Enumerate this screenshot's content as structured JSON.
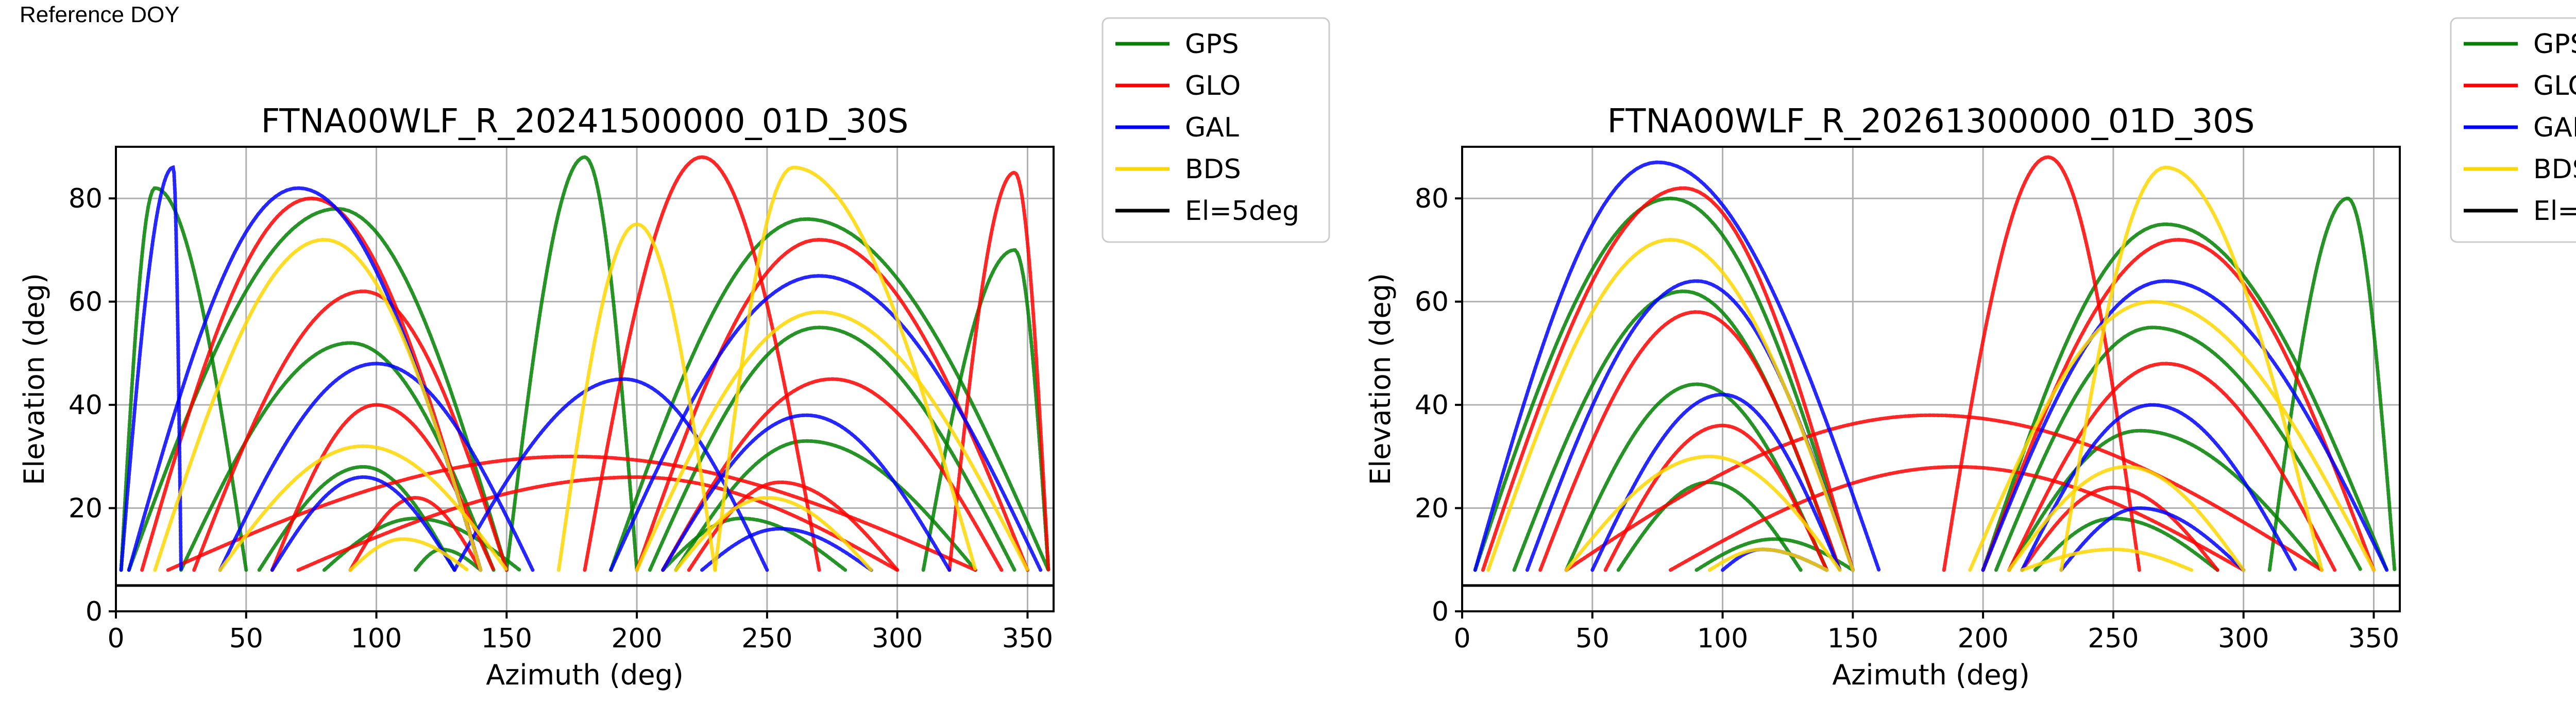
{
  "header": {
    "text": "Reference DOY"
  },
  "legend_entries": [
    {
      "name": "GPS",
      "color": "#008000"
    },
    {
      "name": "GLO",
      "color": "#ff0000"
    },
    {
      "name": "GAL",
      "color": "#0000ff"
    },
    {
      "name": "BDS",
      "color": "#ffd700"
    },
    {
      "name": "El=5deg",
      "color": "#000000"
    }
  ],
  "chart_data": [
    {
      "type": "scatter",
      "title": "FTNA00WLF_R_20241500000_01D_30S",
      "xlabel": "Azimuth (deg)",
      "ylabel": "Elevation (deg)",
      "xlim": [
        0,
        360
      ],
      "ylim": [
        0,
        90
      ],
      "xticks": [
        0,
        50,
        100,
        150,
        200,
        250,
        300,
        350
      ],
      "yticks": [
        0,
        20,
        40,
        60,
        80
      ],
      "grid": true,
      "legend": "outside-right",
      "reference_line": {
        "name": "El=5deg",
        "elevation": 5
      },
      "series": [
        {
          "name": "GPS",
          "color": "#008000",
          "arcs": [
            {
              "az_start": 5,
              "az_end": 150,
              "peak_az": 85,
              "peak_el": 78
            },
            {
              "az_start": 25,
              "az_end": 145,
              "peak_az": 90,
              "peak_el": 52
            },
            {
              "az_start": 55,
              "az_end": 130,
              "peak_az": 95,
              "peak_el": 28
            },
            {
              "az_start": 80,
              "az_end": 155,
              "peak_az": 115,
              "peak_el": 18
            },
            {
              "az_start": 115,
              "az_end": 140,
              "peak_az": 125,
              "peak_el": 12
            },
            {
              "az_start": 190,
              "az_end": 358,
              "peak_az": 265,
              "peak_el": 76
            },
            {
              "az_start": 205,
              "az_end": 345,
              "peak_az": 270,
              "peak_el": 55
            },
            {
              "az_start": 215,
              "az_end": 330,
              "peak_az": 265,
              "peak_el": 33
            },
            {
              "az_start": 210,
              "az_end": 280,
              "peak_az": 240,
              "peak_el": 18
            },
            {
              "az_start": 150,
              "az_end": 200,
              "peak_az": 180,
              "peak_el": 88
            },
            {
              "az_start": 2,
              "az_end": 50,
              "peak_az": 15,
              "peak_el": 82
            },
            {
              "az_start": 310,
              "az_end": 358,
              "peak_az": 345,
              "peak_el": 70
            }
          ]
        },
        {
          "name": "GLO",
          "color": "#ff0000",
          "arcs": [
            {
              "az_start": 10,
              "az_end": 140,
              "peak_az": 75,
              "peak_el": 80
            },
            {
              "az_start": 30,
              "az_end": 150,
              "peak_az": 95,
              "peak_el": 62
            },
            {
              "az_start": 60,
              "az_end": 145,
              "peak_az": 100,
              "peak_el": 40
            },
            {
              "az_start": 90,
              "az_end": 140,
              "peak_az": 115,
              "peak_el": 22
            },
            {
              "az_start": 20,
              "az_end": 330,
              "peak_az": 175,
              "peak_el": 30
            },
            {
              "az_start": 70,
              "az_end": 300,
              "peak_az": 200,
              "peak_el": 26
            },
            {
              "az_start": 200,
              "az_end": 350,
              "peak_az": 270,
              "peak_el": 72
            },
            {
              "az_start": 210,
              "az_end": 340,
              "peak_az": 275,
              "peak_el": 45
            },
            {
              "az_start": 220,
              "az_end": 300,
              "peak_az": 255,
              "peak_el": 25
            },
            {
              "az_start": 180,
              "az_end": 270,
              "peak_az": 225,
              "peak_el": 88
            },
            {
              "az_start": 320,
              "az_end": 358,
              "peak_az": 345,
              "peak_el": 85
            }
          ]
        },
        {
          "name": "GAL",
          "color": "#0000ff",
          "arcs": [
            {
              "az_start": 2,
              "az_end": 25,
              "peak_az": 22,
              "peak_el": 86
            },
            {
              "az_start": 5,
              "az_end": 140,
              "peak_az": 70,
              "peak_el": 82
            },
            {
              "az_start": 40,
              "az_end": 160,
              "peak_az": 100,
              "peak_el": 48
            },
            {
              "az_start": 60,
              "az_end": 130,
              "peak_az": 95,
              "peak_el": 26
            },
            {
              "az_start": 190,
              "az_end": 355,
              "peak_az": 270,
              "peak_el": 65
            },
            {
              "az_start": 210,
              "az_end": 320,
              "peak_az": 265,
              "peak_el": 38
            },
            {
              "az_start": 225,
              "az_end": 290,
              "peak_az": 255,
              "peak_el": 16
            },
            {
              "az_start": 130,
              "az_end": 250,
              "peak_az": 195,
              "peak_el": 45
            }
          ]
        },
        {
          "name": "BDS",
          "color": "#ffd700",
          "arcs": [
            {
              "az_start": 15,
              "az_end": 140,
              "peak_az": 80,
              "peak_el": 72
            },
            {
              "az_start": 40,
              "az_end": 150,
              "peak_az": 95,
              "peak_el": 32
            },
            {
              "az_start": 90,
              "az_end": 135,
              "peak_az": 110,
              "peak_el": 14
            },
            {
              "az_start": 200,
              "az_end": 350,
              "peak_az": 270,
              "peak_el": 58
            },
            {
              "az_start": 215,
              "az_end": 290,
              "peak_az": 250,
              "peak_el": 22
            },
            {
              "az_start": 230,
              "az_end": 330,
              "peak_az": 260,
              "peak_el": 86
            },
            {
              "az_start": 170,
              "az_end": 230,
              "peak_az": 200,
              "peak_el": 75
            }
          ]
        }
      ]
    },
    {
      "type": "scatter",
      "title": "FTNA00WLF_R_20261300000_01D_30S",
      "xlabel": "Azimuth (deg)",
      "ylabel": "Elevation (deg)",
      "xlim": [
        0,
        360
      ],
      "ylim": [
        0,
        90
      ],
      "xticks": [
        0,
        50,
        100,
        150,
        200,
        250,
        300,
        350
      ],
      "yticks": [
        0,
        20,
        40,
        60,
        80
      ],
      "grid": true,
      "legend": "outside-right",
      "reference_line": {
        "name": "El=5deg",
        "elevation": 5
      },
      "series": [
        {
          "name": "GPS",
          "color": "#008000",
          "arcs": [
            {
              "az_start": 5,
              "az_end": 150,
              "peak_az": 80,
              "peak_el": 80
            },
            {
              "az_start": 20,
              "az_end": 145,
              "peak_az": 85,
              "peak_el": 62
            },
            {
              "az_start": 40,
              "az_end": 140,
              "peak_az": 90,
              "peak_el": 44
            },
            {
              "az_start": 60,
              "az_end": 130,
              "peak_az": 95,
              "peak_el": 25
            },
            {
              "az_start": 90,
              "az_end": 150,
              "peak_az": 120,
              "peak_el": 14
            },
            {
              "az_start": 200,
              "az_end": 355,
              "peak_az": 270,
              "peak_el": 75
            },
            {
              "az_start": 205,
              "az_end": 345,
              "peak_az": 265,
              "peak_el": 55
            },
            {
              "az_start": 210,
              "az_end": 330,
              "peak_az": 260,
              "peak_el": 35
            },
            {
              "az_start": 220,
              "az_end": 290,
              "peak_az": 250,
              "peak_el": 18
            },
            {
              "az_start": 310,
              "az_end": 358,
              "peak_az": 340,
              "peak_el": 80
            }
          ]
        },
        {
          "name": "GLO",
          "color": "#ff0000",
          "arcs": [
            {
              "az_start": 8,
              "az_end": 150,
              "peak_az": 85,
              "peak_el": 82
            },
            {
              "az_start": 30,
              "az_end": 145,
              "peak_az": 90,
              "peak_el": 58
            },
            {
              "az_start": 55,
              "az_end": 140,
              "peak_az": 100,
              "peak_el": 36
            },
            {
              "az_start": 40,
              "az_end": 330,
              "peak_az": 180,
              "peak_el": 38
            },
            {
              "az_start": 80,
              "az_end": 300,
              "peak_az": 190,
              "peak_el": 28
            },
            {
              "az_start": 200,
              "az_end": 350,
              "peak_az": 275,
              "peak_el": 72
            },
            {
              "az_start": 210,
              "az_end": 335,
              "peak_az": 270,
              "peak_el": 48
            },
            {
              "az_start": 215,
              "az_end": 290,
              "peak_az": 250,
              "peak_el": 24
            },
            {
              "az_start": 185,
              "az_end": 260,
              "peak_az": 225,
              "peak_el": 88
            }
          ]
        },
        {
          "name": "GAL",
          "color": "#0000ff",
          "arcs": [
            {
              "az_start": 5,
              "az_end": 160,
              "peak_az": 75,
              "peak_el": 87
            },
            {
              "az_start": 25,
              "az_end": 150,
              "peak_az": 90,
              "peak_el": 64
            },
            {
              "az_start": 50,
              "az_end": 145,
              "peak_az": 100,
              "peak_el": 42
            },
            {
              "az_start": 100,
              "az_end": 140,
              "peak_az": 115,
              "peak_el": 12
            },
            {
              "az_start": 200,
              "az_end": 355,
              "peak_az": 270,
              "peak_el": 64
            },
            {
              "az_start": 215,
              "az_end": 320,
              "peak_az": 265,
              "peak_el": 40
            },
            {
              "az_start": 230,
              "az_end": 300,
              "peak_az": 260,
              "peak_el": 20
            }
          ]
        },
        {
          "name": "BDS",
          "color": "#ffd700",
          "arcs": [
            {
              "az_start": 10,
              "az_end": 150,
              "peak_az": 80,
              "peak_el": 72
            },
            {
              "az_start": 40,
              "az_end": 145,
              "peak_az": 95,
              "peak_el": 30
            },
            {
              "az_start": 95,
              "az_end": 140,
              "peak_az": 115,
              "peak_el": 12
            },
            {
              "az_start": 195,
              "az_end": 350,
              "peak_az": 265,
              "peak_el": 60
            },
            {
              "az_start": 210,
              "az_end": 300,
              "peak_az": 255,
              "peak_el": 28
            },
            {
              "az_start": 215,
              "az_end": 280,
              "peak_az": 250,
              "peak_el": 12
            },
            {
              "az_start": 230,
              "az_end": 330,
              "peak_az": 270,
              "peak_el": 86
            }
          ]
        }
      ]
    }
  ]
}
